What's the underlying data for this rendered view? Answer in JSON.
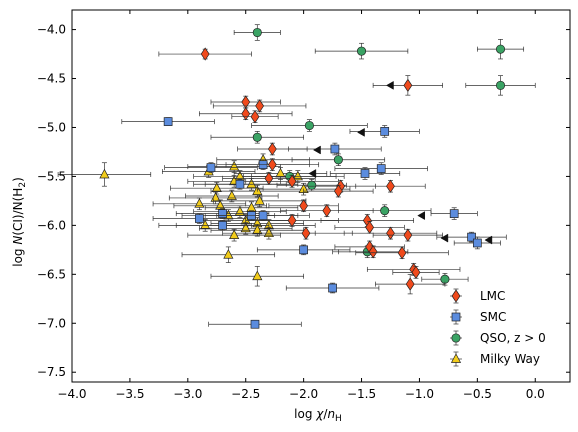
{
  "chart_data": {
    "type": "scatter",
    "title": "",
    "xlabel": "log χ/n_H",
    "ylabel": "log N(CI)/N(H2)",
    "xlim": [
      -4.0,
      0.3
    ],
    "ylim": [
      -7.6,
      -3.8
    ],
    "xticks": [
      -4.0,
      -3.5,
      -3.0,
      -2.5,
      -2.0,
      -1.5,
      -1.0,
      -0.5,
      0.0
    ],
    "xtick_labels": [
      "−4.0",
      "−3.5",
      "−3.0",
      "−2.5",
      "−2.0",
      "−1.5",
      "−1.0",
      "−0.5",
      "0.0"
    ],
    "yticks": [
      -4.0,
      -4.5,
      -5.0,
      -5.5,
      -6.0,
      -6.5,
      -7.0,
      -7.5
    ],
    "ytick_labels": [
      "−4.0",
      "−4.5",
      "−5.0",
      "−5.5",
      "−6.0",
      "−6.5",
      "−7.0",
      "−7.5"
    ],
    "grid": false,
    "legend_position": "bottom-right",
    "series": [
      {
        "name": "LMC",
        "marker": "diamond",
        "color": "#f04a1c",
        "points": [
          {
            "x": -2.85,
            "y": -4.25,
            "xerr": 0.4,
            "yerr": 0.05
          },
          {
            "x": -2.5,
            "y": -4.74,
            "xerr": 0.3,
            "yerr": 0.06
          },
          {
            "x": -2.38,
            "y": -4.78,
            "xerr": 0.4,
            "yerr": 0.06
          },
          {
            "x": -2.5,
            "y": -4.86,
            "xerr": 0.4,
            "yerr": 0.06
          },
          {
            "x": -2.42,
            "y": -4.89,
            "xerr": 0.2,
            "yerr": 0.06
          },
          {
            "x": -1.1,
            "y": -4.57,
            "xerr": 0.3,
            "yerr": 0.1
          },
          {
            "x": -2.27,
            "y": -5.22,
            "xerr": 0.3,
            "yerr": 0.06
          },
          {
            "x": -2.27,
            "y": -5.38,
            "xerr": 0.4,
            "yerr": 0.06
          },
          {
            "x": -2.3,
            "y": -5.52,
            "xerr": 0.4,
            "yerr": 0.06
          },
          {
            "x": -2.1,
            "y": -5.55,
            "xerr": 0.4,
            "yerr": 0.06
          },
          {
            "x": -2.0,
            "y": -5.8,
            "xerr": 0.3,
            "yerr": 0.06
          },
          {
            "x": -1.68,
            "y": -5.6,
            "xerr": 0.3,
            "yerr": 0.06
          },
          {
            "x": -1.7,
            "y": -5.65,
            "xerr": 0.3,
            "yerr": 0.06
          },
          {
            "x": -1.8,
            "y": -5.85,
            "xerr": 0.4,
            "yerr": 0.06
          },
          {
            "x": -1.25,
            "y": -5.6,
            "xerr": 0.3,
            "yerr": 0.06
          },
          {
            "x": -2.1,
            "y": -5.95,
            "xerr": 0.4,
            "yerr": 0.06
          },
          {
            "x": -1.45,
            "y": -5.95,
            "xerr": 0.4,
            "yerr": 0.06
          },
          {
            "x": -1.43,
            "y": -6.02,
            "xerr": 0.3,
            "yerr": 0.06
          },
          {
            "x": -1.25,
            "y": -6.08,
            "xerr": 0.4,
            "yerr": 0.06
          },
          {
            "x": -1.1,
            "y": -6.1,
            "xerr": 0.3,
            "yerr": 0.06
          },
          {
            "x": -1.98,
            "y": -6.08,
            "xerr": 0.4,
            "yerr": 0.06
          },
          {
            "x": -1.43,
            "y": -6.22,
            "xerr": 0.3,
            "yerr": 0.06
          },
          {
            "x": -1.4,
            "y": -6.27,
            "xerr": 0.3,
            "yerr": 0.06
          },
          {
            "x": -1.15,
            "y": -6.28,
            "xerr": 0.4,
            "yerr": 0.06
          },
          {
            "x": -1.05,
            "y": -6.45,
            "xerr": 0.4,
            "yerr": 0.06
          },
          {
            "x": -1.03,
            "y": -6.48,
            "xerr": 0.2,
            "yerr": 0.06
          },
          {
            "x": -1.08,
            "y": -6.6,
            "xerr": 0.3,
            "yerr": 0.1
          }
        ]
      },
      {
        "name": "SMC",
        "marker": "square",
        "color": "#5b8cde",
        "points": [
          {
            "x": -3.17,
            "y": -4.94,
            "xerr": 0.4,
            "yerr": 0.04
          },
          {
            "x": -1.3,
            "y": -5.04,
            "xerr": 0.3,
            "yerr": 0.06
          },
          {
            "x": -1.73,
            "y": -5.22,
            "xerr": 0.4,
            "yerr": 0.06
          },
          {
            "x": -2.8,
            "y": -5.41,
            "xerr": 0.4,
            "yerr": 0.05
          },
          {
            "x": -2.35,
            "y": -5.38,
            "xerr": 0.4,
            "yerr": 0.05
          },
          {
            "x": -1.33,
            "y": -5.42,
            "xerr": 0.4,
            "yerr": 0.06
          },
          {
            "x": -1.47,
            "y": -5.47,
            "xerr": 0.3,
            "yerr": 0.06
          },
          {
            "x": -2.55,
            "y": -5.58,
            "xerr": 0.4,
            "yerr": 0.05
          },
          {
            "x": -2.7,
            "y": -5.88,
            "xerr": 0.4,
            "yerr": 0.05
          },
          {
            "x": -2.45,
            "y": -5.9,
            "xerr": 0.4,
            "yerr": 0.05
          },
          {
            "x": -2.35,
            "y": -5.9,
            "xerr": 0.4,
            "yerr": 0.05
          },
          {
            "x": -2.9,
            "y": -5.93,
            "xerr": 0.4,
            "yerr": 0.05
          },
          {
            "x": -2.7,
            "y": -6.0,
            "xerr": 0.4,
            "yerr": 0.05
          },
          {
            "x": -2.0,
            "y": -6.25,
            "xerr": 0.4,
            "yerr": 0.05
          },
          {
            "x": -0.7,
            "y": -5.88,
            "xerr": 0.2,
            "yerr": 0.06
          },
          {
            "x": -0.55,
            "y": -6.12,
            "xerr": 0.3,
            "yerr": 0.05
          },
          {
            "x": -0.5,
            "y": -6.18,
            "xerr": 0.2,
            "yerr": 0.06
          },
          {
            "x": -1.75,
            "y": -6.64,
            "xerr": 0.4,
            "yerr": 0.05
          },
          {
            "x": -2.42,
            "y": -7.01,
            "xerr": 0.4,
            "yerr": 0.04
          }
        ]
      },
      {
        "name": "QSO, z > 0",
        "marker": "circle",
        "color": "#3aa364",
        "points": [
          {
            "x": -2.4,
            "y": -4.03,
            "xerr": 0.2,
            "yerr": 0.08
          },
          {
            "x": -1.5,
            "y": -4.22,
            "xerr": 0.4,
            "yerr": 0.08
          },
          {
            "x": -0.3,
            "y": -4.2,
            "xerr": 0.2,
            "yerr": 0.1
          },
          {
            "x": -0.3,
            "y": -4.57,
            "xerr": 0.3,
            "yerr": 0.1
          },
          {
            "x": -1.95,
            "y": -4.98,
            "xerr": 0.5,
            "yerr": 0.06
          },
          {
            "x": -2.4,
            "y": -5.1,
            "xerr": 0.4,
            "yerr": 0.06
          },
          {
            "x": -1.7,
            "y": -5.33,
            "xerr": 0.4,
            "yerr": 0.06
          },
          {
            "x": -2.12,
            "y": -5.5,
            "xerr": 0.4,
            "yerr": 0.06
          },
          {
            "x": -1.93,
            "y": -5.59,
            "xerr": 0.3,
            "yerr": 0.06
          },
          {
            "x": -1.3,
            "y": -5.85,
            "xerr": 0.4,
            "yerr": 0.06
          },
          {
            "x": -1.45,
            "y": -6.27,
            "xerr": 0.3,
            "yerr": 0.06
          },
          {
            "x": -0.78,
            "y": -6.55,
            "xerr": 0.2,
            "yerr": 0.06
          }
        ]
      },
      {
        "name": "Milky Way",
        "marker": "triangle",
        "color": "#f2cc1a",
        "points": [
          {
            "x": -3.72,
            "y": -5.48,
            "xerr": 0.4,
            "yerr": 0.12
          },
          {
            "x": -2.82,
            "y": -5.45,
            "xerr": 0.4,
            "yerr": 0.06
          },
          {
            "x": -2.6,
            "y": -5.4,
            "xerr": 0.4,
            "yerr": 0.06
          },
          {
            "x": -2.35,
            "y": -5.33,
            "xerr": 0.4,
            "yerr": 0.06
          },
          {
            "x": -2.55,
            "y": -5.5,
            "xerr": 0.4,
            "yerr": 0.06
          },
          {
            "x": -2.2,
            "y": -5.47,
            "xerr": 0.4,
            "yerr": 0.06
          },
          {
            "x": -2.05,
            "y": -5.5,
            "xerr": 0.4,
            "yerr": 0.06
          },
          {
            "x": -2.6,
            "y": -5.55,
            "xerr": 0.4,
            "yerr": 0.06
          },
          {
            "x": -2.45,
            "y": -5.58,
            "xerr": 0.4,
            "yerr": 0.06
          },
          {
            "x": -2.75,
            "y": -5.62,
            "xerr": 0.4,
            "yerr": 0.06
          },
          {
            "x": -2.4,
            "y": -5.65,
            "xerr": 0.4,
            "yerr": 0.06
          },
          {
            "x": -2.0,
            "y": -5.63,
            "xerr": 0.4,
            "yerr": 0.06
          },
          {
            "x": -2.62,
            "y": -5.7,
            "xerr": 0.4,
            "yerr": 0.06
          },
          {
            "x": -2.76,
            "y": -5.72,
            "xerr": 0.4,
            "yerr": 0.06
          },
          {
            "x": -2.38,
            "y": -5.75,
            "xerr": 0.4,
            "yerr": 0.06
          },
          {
            "x": -2.9,
            "y": -5.78,
            "xerr": 0.4,
            "yerr": 0.06
          },
          {
            "x": -2.72,
            "y": -5.8,
            "xerr": 0.4,
            "yerr": 0.06
          },
          {
            "x": -2.45,
            "y": -5.82,
            "xerr": 0.4,
            "yerr": 0.06
          },
          {
            "x": -2.55,
            "y": -5.86,
            "xerr": 0.4,
            "yerr": 0.06
          },
          {
            "x": -2.65,
            "y": -5.9,
            "xerr": 0.4,
            "yerr": 0.06
          },
          {
            "x": -2.5,
            "y": -5.95,
            "xerr": 0.4,
            "yerr": 0.06
          },
          {
            "x": -2.4,
            "y": -5.98,
            "xerr": 0.4,
            "yerr": 0.06
          },
          {
            "x": -2.3,
            "y": -6.0,
            "xerr": 0.4,
            "yerr": 0.06
          },
          {
            "x": -2.85,
            "y": -6.0,
            "xerr": 0.4,
            "yerr": 0.06
          },
          {
            "x": -2.5,
            "y": -6.03,
            "xerr": 0.4,
            "yerr": 0.06
          },
          {
            "x": -2.4,
            "y": -6.05,
            "xerr": 0.4,
            "yerr": 0.06
          },
          {
            "x": -2.3,
            "y": -6.08,
            "xerr": 0.4,
            "yerr": 0.06
          },
          {
            "x": -2.6,
            "y": -6.1,
            "xerr": 0.4,
            "yerr": 0.06
          },
          {
            "x": -2.65,
            "y": -6.3,
            "xerr": 0.4,
            "yerr": 0.08
          },
          {
            "x": -2.4,
            "y": -6.52,
            "xerr": 0.4,
            "yerr": 0.1
          }
        ]
      },
      {
        "name": "",
        "marker": "left-arrow",
        "color": "#111111",
        "points": [
          {
            "x": -1.25,
            "y": -4.57
          },
          {
            "x": -1.5,
            "y": -5.05
          },
          {
            "x": -1.88,
            "y": -5.23
          },
          {
            "x": -1.92,
            "y": -5.47
          },
          {
            "x": -0.98,
            "y": -5.9
          },
          {
            "x": -0.78,
            "y": -6.13
          },
          {
            "x": -0.4,
            "y": -6.15
          }
        ]
      }
    ]
  }
}
